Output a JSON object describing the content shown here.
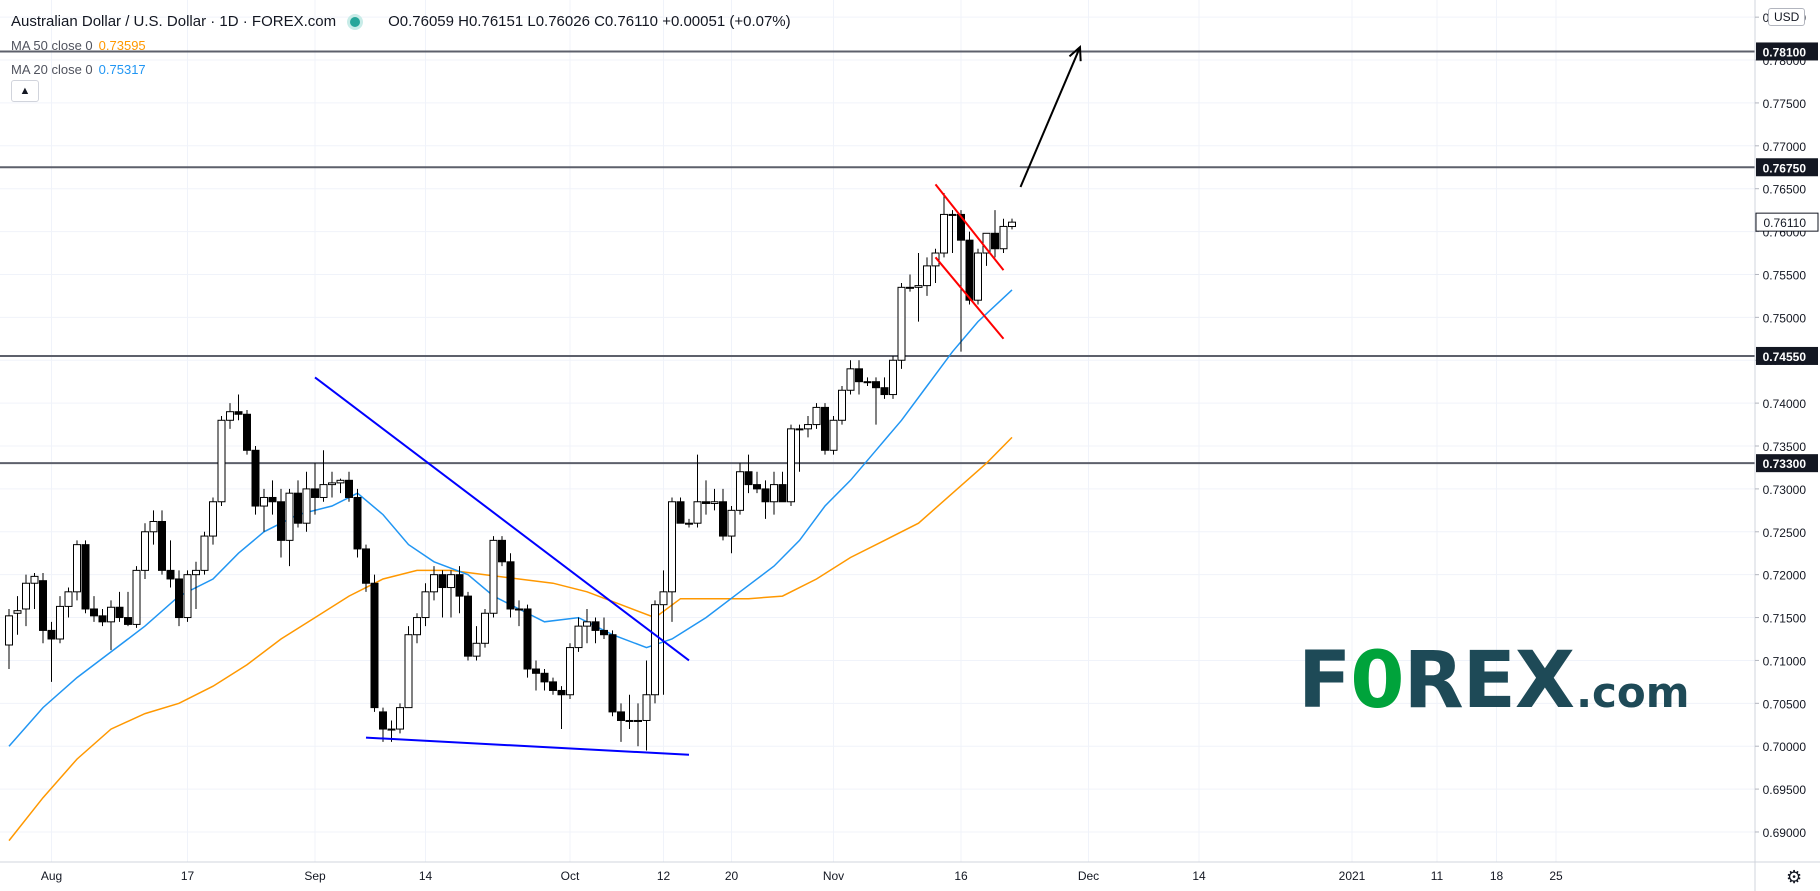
{
  "header": {
    "symbol_title": "Australian Dollar / U.S. Dollar · 1D · FOREX.com",
    "ohlc": "O0.76059 H0.76151 L0.76026 C0.76110 +0.00051 (+0.07%)",
    "ma50_label": "MA 50 close 0",
    "ma50_value": "0.73595",
    "ma20_label": "MA 20 close 0",
    "ma20_value": "0.75317",
    "currency": "USD"
  },
  "logo": {
    "part1": "F",
    "part2": "0",
    "part3": "REX",
    "part4": ".com"
  },
  "colors": {
    "up_candle": "#ffffff",
    "down_candle": "#000000",
    "ma50": "#ff9800",
    "ma20": "#2196f3",
    "trendline": "#0000ff",
    "flag": "#ff0000",
    "level": "#5d606b",
    "label_bg": "#131722",
    "grid": "#f0f3fa",
    "logo": "#1e4a57",
    "logo_accent": "#00a33b"
  },
  "chart_data": {
    "type": "candlestick",
    "y_range": [
      0.6865,
      0.787
    ],
    "x_range_days": [
      -5,
      141
    ],
    "x_ticks": [
      {
        "label": "Aug",
        "day": 0
      },
      {
        "label": "17",
        "day": 16
      },
      {
        "label": "Sep",
        "day": 31
      },
      {
        "label": "14",
        "day": 44
      },
      {
        "label": "Oct",
        "day": 61
      },
      {
        "label": "12",
        "day": 72
      },
      {
        "label": "20",
        "day": 80
      },
      {
        "label": "Nov",
        "day": 92
      },
      {
        "label": "16",
        "day": 107
      },
      {
        "label": "Dec",
        "day": 122
      },
      {
        "label": "14",
        "day": 135
      },
      {
        "label": "2021",
        "day": 153
      },
      {
        "label": "11",
        "day": 163
      },
      {
        "label": "18",
        "day": 170
      },
      {
        "label": "25",
        "day": 177
      }
    ],
    "y_ticks": [
      "0.78500",
      "0.78000",
      "0.77500",
      "0.77000",
      "0.76500",
      "0.76000",
      "0.75500",
      "0.75000",
      "0.74500",
      "0.74000",
      "0.73500",
      "0.73000",
      "0.72500",
      "0.72000",
      "0.71500",
      "0.71000",
      "0.70500",
      "0.70000",
      "0.69500",
      "0.69000"
    ],
    "levels": [
      "0.78100",
      "0.76750",
      "0.74550",
      "0.73300"
    ],
    "last_price": "0.76110",
    "candles": [
      {
        "d": -5,
        "o": 0.7118,
        "h": 0.716,
        "l": 0.709,
        "c": 0.7152
      },
      {
        "d": -4,
        "o": 0.7155,
        "h": 0.7175,
        "l": 0.713,
        "c": 0.7158
      },
      {
        "d": -3,
        "o": 0.716,
        "h": 0.72,
        "l": 0.714,
        "c": 0.719
      },
      {
        "d": -2,
        "o": 0.719,
        "h": 0.7202,
        "l": 0.716,
        "c": 0.7198
      },
      {
        "d": -1,
        "o": 0.7193,
        "h": 0.7202,
        "l": 0.712,
        "c": 0.7135
      },
      {
        "d": 0,
        "o": 0.7135,
        "h": 0.7145,
        "l": 0.7075,
        "c": 0.7125
      },
      {
        "d": 1,
        "o": 0.7125,
        "h": 0.7175,
        "l": 0.712,
        "c": 0.7163
      },
      {
        "d": 2,
        "o": 0.7163,
        "h": 0.7185,
        "l": 0.715,
        "c": 0.718
      },
      {
        "d": 3,
        "o": 0.718,
        "h": 0.724,
        "l": 0.717,
        "c": 0.7235
      },
      {
        "d": 4,
        "o": 0.7235,
        "h": 0.724,
        "l": 0.7155,
        "c": 0.716
      },
      {
        "d": 5,
        "o": 0.716,
        "h": 0.7175,
        "l": 0.7145,
        "c": 0.7152
      },
      {
        "d": 6,
        "o": 0.7152,
        "h": 0.716,
        "l": 0.714,
        "c": 0.7145
      },
      {
        "d": 7,
        "o": 0.7145,
        "h": 0.717,
        "l": 0.7112,
        "c": 0.7162
      },
      {
        "d": 8,
        "o": 0.7162,
        "h": 0.718,
        "l": 0.7145,
        "c": 0.715
      },
      {
        "d": 9,
        "o": 0.715,
        "h": 0.718,
        "l": 0.714,
        "c": 0.7142
      },
      {
        "d": 10,
        "o": 0.7142,
        "h": 0.721,
        "l": 0.7138,
        "c": 0.7205
      },
      {
        "d": 11,
        "o": 0.7205,
        "h": 0.726,
        "l": 0.7195,
        "c": 0.725
      },
      {
        "d": 12,
        "o": 0.725,
        "h": 0.7275,
        "l": 0.7235,
        "c": 0.7262
      },
      {
        "d": 13,
        "o": 0.7262,
        "h": 0.7275,
        "l": 0.72,
        "c": 0.7205
      },
      {
        "d": 14,
        "o": 0.7205,
        "h": 0.724,
        "l": 0.7185,
        "c": 0.7195
      },
      {
        "d": 15,
        "o": 0.7195,
        "h": 0.7205,
        "l": 0.714,
        "c": 0.715
      },
      {
        "d": 16,
        "o": 0.715,
        "h": 0.7205,
        "l": 0.7145,
        "c": 0.72
      },
      {
        "d": 17,
        "o": 0.72,
        "h": 0.7215,
        "l": 0.716,
        "c": 0.7205
      },
      {
        "d": 18,
        "o": 0.7205,
        "h": 0.725,
        "l": 0.72,
        "c": 0.7245
      },
      {
        "d": 19,
        "o": 0.7245,
        "h": 0.729,
        "l": 0.7235,
        "c": 0.7285
      },
      {
        "d": 20,
        "o": 0.7285,
        "h": 0.7385,
        "l": 0.728,
        "c": 0.738
      },
      {
        "d": 21,
        "o": 0.738,
        "h": 0.74,
        "l": 0.737,
        "c": 0.739
      },
      {
        "d": 22,
        "o": 0.739,
        "h": 0.741,
        "l": 0.738,
        "c": 0.7387
      },
      {
        "d": 23,
        "o": 0.7387,
        "h": 0.7392,
        "l": 0.734,
        "c": 0.7345
      },
      {
        "d": 24,
        "o": 0.7345,
        "h": 0.735,
        "l": 0.727,
        "c": 0.728
      },
      {
        "d": 25,
        "o": 0.728,
        "h": 0.73,
        "l": 0.725,
        "c": 0.729
      },
      {
        "d": 26,
        "o": 0.729,
        "h": 0.731,
        "l": 0.727,
        "c": 0.7285
      },
      {
        "d": 27,
        "o": 0.7285,
        "h": 0.73,
        "l": 0.722,
        "c": 0.724
      },
      {
        "d": 28,
        "o": 0.724,
        "h": 0.73,
        "l": 0.721,
        "c": 0.7295
      },
      {
        "d": 29,
        "o": 0.7295,
        "h": 0.731,
        "l": 0.7255,
        "c": 0.726
      },
      {
        "d": 30,
        "o": 0.726,
        "h": 0.732,
        "l": 0.725,
        "c": 0.73
      },
      {
        "d": 31,
        "o": 0.73,
        "h": 0.733,
        "l": 0.727,
        "c": 0.729
      },
      {
        "d": 32,
        "o": 0.729,
        "h": 0.7345,
        "l": 0.7285,
        "c": 0.7305
      },
      {
        "d": 33,
        "o": 0.7305,
        "h": 0.732,
        "l": 0.729,
        "c": 0.7307
      },
      {
        "d": 34,
        "o": 0.7307,
        "h": 0.7312,
        "l": 0.7295,
        "c": 0.731
      },
      {
        "d": 35,
        "o": 0.731,
        "h": 0.732,
        "l": 0.7285,
        "c": 0.729
      },
      {
        "d": 36,
        "o": 0.729,
        "h": 0.73,
        "l": 0.722,
        "c": 0.723
      },
      {
        "d": 37,
        "o": 0.723,
        "h": 0.7235,
        "l": 0.718,
        "c": 0.719
      },
      {
        "d": 38,
        "o": 0.719,
        "h": 0.72,
        "l": 0.704,
        "c": 0.7045
      },
      {
        "d": 39,
        "o": 0.704,
        "h": 0.7045,
        "l": 0.7005,
        "c": 0.702
      },
      {
        "d": 40,
        "o": 0.702,
        "h": 0.703,
        "l": 0.7005,
        "c": 0.702
      },
      {
        "d": 41,
        "o": 0.702,
        "h": 0.705,
        "l": 0.7015,
        "c": 0.7045
      },
      {
        "d": 42,
        "o": 0.7045,
        "h": 0.714,
        "l": 0.7045,
        "c": 0.713
      },
      {
        "d": 43,
        "o": 0.713,
        "h": 0.7155,
        "l": 0.712,
        "c": 0.715
      },
      {
        "d": 44,
        "o": 0.715,
        "h": 0.719,
        "l": 0.714,
        "c": 0.718
      },
      {
        "d": 45,
        "o": 0.718,
        "h": 0.721,
        "l": 0.717,
        "c": 0.72
      },
      {
        "d": 46,
        "o": 0.72,
        "h": 0.7205,
        "l": 0.715,
        "c": 0.7185
      },
      {
        "d": 47,
        "o": 0.7185,
        "h": 0.7205,
        "l": 0.715,
        "c": 0.72
      },
      {
        "d": 48,
        "o": 0.72,
        "h": 0.721,
        "l": 0.7155,
        "c": 0.7175
      },
      {
        "d": 49,
        "o": 0.7175,
        "h": 0.718,
        "l": 0.71,
        "c": 0.7105
      },
      {
        "d": 50,
        "o": 0.7105,
        "h": 0.714,
        "l": 0.71,
        "c": 0.712
      },
      {
        "d": 51,
        "o": 0.712,
        "h": 0.716,
        "l": 0.7115,
        "c": 0.7155
      },
      {
        "d": 52,
        "o": 0.7155,
        "h": 0.7245,
        "l": 0.715,
        "c": 0.724
      },
      {
        "d": 53,
        "o": 0.724,
        "h": 0.7245,
        "l": 0.721,
        "c": 0.7215
      },
      {
        "d": 54,
        "o": 0.7215,
        "h": 0.7225,
        "l": 0.715,
        "c": 0.716
      },
      {
        "d": 55,
        "o": 0.716,
        "h": 0.717,
        "l": 0.714,
        "c": 0.716
      },
      {
        "d": 56,
        "o": 0.716,
        "h": 0.7165,
        "l": 0.708,
        "c": 0.709
      },
      {
        "d": 57,
        "o": 0.709,
        "h": 0.71,
        "l": 0.7065,
        "c": 0.7085
      },
      {
        "d": 58,
        "o": 0.7085,
        "h": 0.709,
        "l": 0.7065,
        "c": 0.7075
      },
      {
        "d": 59,
        "o": 0.7075,
        "h": 0.708,
        "l": 0.706,
        "c": 0.7065
      },
      {
        "d": 60,
        "o": 0.7065,
        "h": 0.707,
        "l": 0.702,
        "c": 0.706
      },
      {
        "d": 61,
        "o": 0.706,
        "h": 0.712,
        "l": 0.7055,
        "c": 0.7115
      },
      {
        "d": 62,
        "o": 0.7115,
        "h": 0.715,
        "l": 0.711,
        "c": 0.714
      },
      {
        "d": 63,
        "o": 0.714,
        "h": 0.716,
        "l": 0.712,
        "c": 0.7145
      },
      {
        "d": 64,
        "o": 0.7145,
        "h": 0.715,
        "l": 0.712,
        "c": 0.7135
      },
      {
        "d": 65,
        "o": 0.7135,
        "h": 0.715,
        "l": 0.7125,
        "c": 0.713
      },
      {
        "d": 66,
        "o": 0.713,
        "h": 0.7135,
        "l": 0.7035,
        "c": 0.704
      },
      {
        "d": 67,
        "o": 0.704,
        "h": 0.705,
        "l": 0.7005,
        "c": 0.703
      },
      {
        "d": 68,
        "o": 0.703,
        "h": 0.706,
        "l": 0.702,
        "c": 0.703
      },
      {
        "d": 69,
        "o": 0.703,
        "h": 0.705,
        "l": 0.7,
        "c": 0.703
      },
      {
        "d": 70,
        "o": 0.703,
        "h": 0.71,
        "l": 0.6995,
        "c": 0.706
      },
      {
        "d": 71,
        "o": 0.706,
        "h": 0.717,
        "l": 0.705,
        "c": 0.7165
      },
      {
        "d": 72,
        "o": 0.7165,
        "h": 0.7205,
        "l": 0.706,
        "c": 0.718
      },
      {
        "d": 73,
        "o": 0.718,
        "h": 0.729,
        "l": 0.7145,
        "c": 0.7285
      },
      {
        "d": 74,
        "o": 0.7285,
        "h": 0.729,
        "l": 0.726,
        "c": 0.726
      },
      {
        "d": 75,
        "o": 0.726,
        "h": 0.7265,
        "l": 0.7255,
        "c": 0.726
      },
      {
        "d": 76,
        "o": 0.726,
        "h": 0.734,
        "l": 0.7255,
        "c": 0.7285
      },
      {
        "d": 77,
        "o": 0.7285,
        "h": 0.731,
        "l": 0.727,
        "c": 0.7283
      },
      {
        "d": 78,
        "o": 0.7283,
        "h": 0.73,
        "l": 0.7275,
        "c": 0.7285
      },
      {
        "d": 79,
        "o": 0.7285,
        "h": 0.73,
        "l": 0.724,
        "c": 0.7245
      },
      {
        "d": 80,
        "o": 0.7245,
        "h": 0.728,
        "l": 0.7225,
        "c": 0.7275
      },
      {
        "d": 81,
        "o": 0.7275,
        "h": 0.733,
        "l": 0.727,
        "c": 0.732
      },
      {
        "d": 82,
        "o": 0.732,
        "h": 0.734,
        "l": 0.7295,
        "c": 0.7305
      },
      {
        "d": 83,
        "o": 0.7305,
        "h": 0.732,
        "l": 0.7295,
        "c": 0.73
      },
      {
        "d": 84,
        "o": 0.73,
        "h": 0.731,
        "l": 0.7265,
        "c": 0.7285
      },
      {
        "d": 85,
        "o": 0.7285,
        "h": 0.732,
        "l": 0.727,
        "c": 0.7305
      },
      {
        "d": 86,
        "o": 0.7305,
        "h": 0.732,
        "l": 0.7285,
        "c": 0.7285
      },
      {
        "d": 87,
        "o": 0.7285,
        "h": 0.7375,
        "l": 0.728,
        "c": 0.737
      },
      {
        "d": 88,
        "o": 0.737,
        "h": 0.7375,
        "l": 0.732,
        "c": 0.737
      },
      {
        "d": 89,
        "o": 0.737,
        "h": 0.7385,
        "l": 0.736,
        "c": 0.7375
      },
      {
        "d": 90,
        "o": 0.7375,
        "h": 0.74,
        "l": 0.737,
        "c": 0.7395
      },
      {
        "d": 91,
        "o": 0.7395,
        "h": 0.74,
        "l": 0.734,
        "c": 0.7345
      },
      {
        "d": 92,
        "o": 0.7345,
        "h": 0.7385,
        "l": 0.734,
        "c": 0.738
      },
      {
        "d": 93,
        "o": 0.738,
        "h": 0.742,
        "l": 0.7375,
        "c": 0.7415
      },
      {
        "d": 94,
        "o": 0.7415,
        "h": 0.745,
        "l": 0.741,
        "c": 0.744
      },
      {
        "d": 95,
        "o": 0.744,
        "h": 0.745,
        "l": 0.741,
        "c": 0.7425
      },
      {
        "d": 96,
        "o": 0.7425,
        "h": 0.743,
        "l": 0.742,
        "c": 0.7425
      },
      {
        "d": 97,
        "o": 0.7425,
        "h": 0.743,
        "l": 0.7375,
        "c": 0.7418
      },
      {
        "d": 98,
        "o": 0.7418,
        "h": 0.743,
        "l": 0.7405,
        "c": 0.741
      },
      {
        "d": 99,
        "o": 0.741,
        "h": 0.7455,
        "l": 0.7405,
        "c": 0.745
      },
      {
        "d": 100,
        "o": 0.745,
        "h": 0.754,
        "l": 0.744,
        "c": 0.7535
      },
      {
        "d": 101,
        "o": 0.7535,
        "h": 0.755,
        "l": 0.753,
        "c": 0.7535
      },
      {
        "d": 102,
        "o": 0.7535,
        "h": 0.7575,
        "l": 0.7495,
        "c": 0.7537
      },
      {
        "d": 103,
        "o": 0.7537,
        "h": 0.757,
        "l": 0.7525,
        "c": 0.756
      },
      {
        "d": 104,
        "o": 0.756,
        "h": 0.758,
        "l": 0.754,
        "c": 0.7575
      },
      {
        "d": 105,
        "o": 0.7575,
        "h": 0.7645,
        "l": 0.757,
        "c": 0.762
      },
      {
        "d": 106,
        "o": 0.762,
        "h": 0.7625,
        "l": 0.7575,
        "c": 0.762
      },
      {
        "d": 107,
        "o": 0.762,
        "h": 0.7625,
        "l": 0.746,
        "c": 0.759
      },
      {
        "d": 108,
        "o": 0.759,
        "h": 0.76,
        "l": 0.7515,
        "c": 0.752
      },
      {
        "d": 109,
        "o": 0.752,
        "h": 0.758,
        "l": 0.7515,
        "c": 0.7575
      },
      {
        "d": 110,
        "o": 0.7575,
        "h": 0.759,
        "l": 0.756,
        "c": 0.7598
      },
      {
        "d": 111,
        "o": 0.7598,
        "h": 0.7625,
        "l": 0.757,
        "c": 0.758
      },
      {
        "d": 112,
        "o": 0.758,
        "h": 0.7615,
        "l": 0.7575,
        "c": 0.7606
      },
      {
        "d": 113,
        "o": 0.76059,
        "h": 0.76151,
        "l": 0.76026,
        "c": 0.7611
      }
    ],
    "ma20": [
      [
        -5,
        0.7
      ],
      [
        -1,
        0.7045
      ],
      [
        3,
        0.708
      ],
      [
        7,
        0.711
      ],
      [
        11,
        0.714
      ],
      [
        15,
        0.7175
      ],
      [
        19,
        0.7195
      ],
      [
        22,
        0.7225
      ],
      [
        25,
        0.725
      ],
      [
        29,
        0.727
      ],
      [
        33,
        0.728
      ],
      [
        36,
        0.7295
      ],
      [
        39,
        0.727
      ],
      [
        42,
        0.7235
      ],
      [
        45,
        0.7215
      ],
      [
        49,
        0.72
      ],
      [
        52,
        0.7175
      ],
      [
        55,
        0.716
      ],
      [
        58,
        0.7145
      ],
      [
        62,
        0.715
      ],
      [
        66,
        0.713
      ],
      [
        70,
        0.7115
      ],
      [
        73,
        0.7125
      ],
      [
        77,
        0.715
      ],
      [
        81,
        0.718
      ],
      [
        85,
        0.721
      ],
      [
        88,
        0.724
      ],
      [
        91,
        0.728
      ],
      [
        94,
        0.731
      ],
      [
        97,
        0.7345
      ],
      [
        100,
        0.738
      ],
      [
        103,
        0.742
      ],
      [
        106,
        0.746
      ],
      [
        109,
        0.7495
      ],
      [
        113,
        0.7532
      ]
    ],
    "ma50": [
      [
        -5,
        0.689
      ],
      [
        -1,
        0.694
      ],
      [
        3,
        0.6985
      ],
      [
        7,
        0.702
      ],
      [
        11,
        0.7038
      ],
      [
        15,
        0.705
      ],
      [
        19,
        0.707
      ],
      [
        23,
        0.7095
      ],
      [
        27,
        0.7125
      ],
      [
        31,
        0.715
      ],
      [
        35,
        0.7175
      ],
      [
        39,
        0.7195
      ],
      [
        43,
        0.7205
      ],
      [
        47,
        0.7205
      ],
      [
        51,
        0.72
      ],
      [
        55,
        0.7195
      ],
      [
        59,
        0.719
      ],
      [
        63,
        0.718
      ],
      [
        67,
        0.7165
      ],
      [
        71,
        0.715
      ],
      [
        74,
        0.7172
      ],
      [
        78,
        0.7172
      ],
      [
        82,
        0.7172
      ],
      [
        86,
        0.7175
      ],
      [
        90,
        0.7195
      ],
      [
        94,
        0.722
      ],
      [
        98,
        0.724
      ],
      [
        102,
        0.726
      ],
      [
        106,
        0.7295
      ],
      [
        110,
        0.733
      ],
      [
        113,
        0.736
      ]
    ],
    "trendlines": [
      {
        "name": "descending-resistance",
        "color": "trendline",
        "p1": [
          31,
          0.743
        ],
        "p2": [
          75,
          0.71
        ]
      },
      {
        "name": "support-line",
        "color": "trendline",
        "p1": [
          37,
          0.701
        ],
        "p2": [
          75,
          0.699
        ]
      },
      {
        "name": "flag-upper",
        "color": "flag",
        "p1": [
          104,
          0.7655
        ],
        "p2": [
          112,
          0.7555
        ]
      },
      {
        "name": "flag-lower",
        "color": "flag",
        "p1": [
          104,
          0.757
        ],
        "p2": [
          112,
          0.7475
        ]
      }
    ],
    "arrow": {
      "from": [
        114,
        0.7652
      ],
      "to": [
        121,
        0.7815
      ]
    }
  }
}
